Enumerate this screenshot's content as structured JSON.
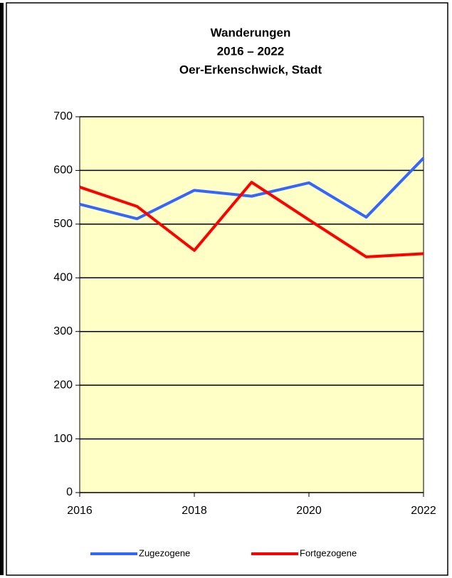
{
  "chart_data": {
    "type": "line",
    "title": [
      "Wanderungen",
      "2016 – 2022",
      "Oer-Erkenschwick, Stadt"
    ],
    "x": [
      2016,
      2017,
      2018,
      2019,
      2020,
      2021,
      2022
    ],
    "series": [
      {
        "name": "Zugezogene",
        "color": "#3366ff",
        "values": [
          537,
          510,
          563,
          552,
          577,
          513,
          623
        ]
      },
      {
        "name": "Fortgezogene",
        "color": "#ff0000",
        "values": [
          569,
          533,
          451,
          578,
          508,
          439,
          445
        ]
      }
    ],
    "xlim": [
      2016,
      2022
    ],
    "xticks": [
      2016,
      2018,
      2020,
      2022
    ],
    "ylim": [
      0,
      700
    ],
    "yticks": [
      0,
      100,
      200,
      300,
      400,
      500,
      600,
      700
    ],
    "grid": true,
    "legend": "bottom",
    "plot_background": "#ffffc6"
  }
}
